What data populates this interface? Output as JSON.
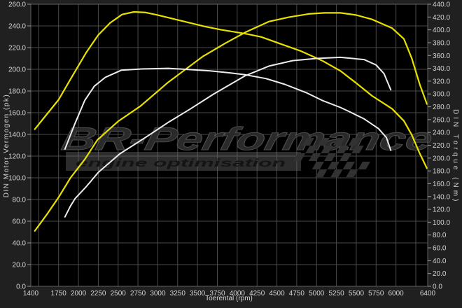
{
  "watermark": {
    "brand": "BR-Performance",
    "tagline": "engine optimisation"
  },
  "colors": {
    "margin_bg": "#202020",
    "plot_bg": "#000000",
    "grid": "#4a4a4a",
    "border": "#5f5f5f",
    "tick": "#9a9a9a",
    "tick_text": "#d6d6d6",
    "tuned": "#e8e100",
    "stock": "#ececec",
    "watermark_bar": "#6a6a6a",
    "checker": "#323232"
  },
  "chart_data": {
    "type": "line",
    "title": "",
    "xlabel": "Toerental (rpm)",
    "ylabel_left": "DIN Motor Vermogen (pk)",
    "ylabel_right": "DIN Torque (Nm)",
    "xlim": [
      1400,
      6400
    ],
    "ylim_left": [
      0,
      260
    ],
    "ylim_right": [
      0,
      440
    ],
    "grid": true,
    "x_grid_start": 1500,
    "x_grid_step": 250,
    "x_tick_labels": [
      1400,
      1750,
      2000,
      2250,
      2500,
      2750,
      3000,
      3250,
      3500,
      3750,
      4000,
      4250,
      4500,
      4750,
      5000,
      5250,
      5500,
      5750,
      6000,
      6400
    ],
    "y_left_tick_labels": [
      0,
      20,
      40,
      60,
      80,
      100,
      120,
      140,
      160,
      180,
      200,
      220,
      240,
      260
    ],
    "y_right_tick_labels": [
      0,
      20,
      40,
      60,
      80,
      100,
      120,
      140,
      160,
      180,
      200,
      220,
      240,
      260,
      280,
      300,
      320,
      340,
      360,
      380,
      400,
      420,
      440
    ],
    "tick_decimals": 1,
    "legend": "none",
    "series": [
      {
        "id": "tuned-torque",
        "axis": "right",
        "unit": "Nm",
        "color_key": "tuned",
        "width": 2.2,
        "points": [
          [
            1450,
            245
          ],
          [
            1600,
            268
          ],
          [
            1750,
            291
          ],
          [
            1900,
            323
          ],
          [
            2100,
            365
          ],
          [
            2250,
            392
          ],
          [
            2400,
            411
          ],
          [
            2550,
            424
          ],
          [
            2700,
            428
          ],
          [
            2850,
            427
          ],
          [
            3000,
            423
          ],
          [
            3200,
            417
          ],
          [
            3400,
            411
          ],
          [
            3600,
            405
          ],
          [
            3800,
            400
          ],
          [
            4100,
            394
          ],
          [
            4300,
            389
          ],
          [
            4550,
            378
          ],
          [
            4800,
            367
          ],
          [
            5070,
            352
          ],
          [
            5300,
            336
          ],
          [
            5500,
            317
          ],
          [
            5700,
            297
          ],
          [
            5950,
            277
          ],
          [
            6100,
            258
          ],
          [
            6200,
            236
          ],
          [
            6300,
            207
          ],
          [
            6390,
            184
          ]
        ]
      },
      {
        "id": "tuned-power",
        "axis": "left",
        "unit": "pk",
        "color_key": "tuned",
        "width": 2.2,
        "points": [
          [
            1450,
            51
          ],
          [
            1600,
            66
          ],
          [
            1750,
            82
          ],
          [
            1900,
            100
          ],
          [
            2080,
            117
          ],
          [
            2240,
            135
          ],
          [
            2500,
            152
          ],
          [
            2780,
            166
          ],
          [
            3130,
            188
          ],
          [
            3570,
            212
          ],
          [
            3850,
            224
          ],
          [
            4100,
            234
          ],
          [
            4400,
            244
          ],
          [
            4650,
            248
          ],
          [
            4900,
            251
          ],
          [
            5100,
            252
          ],
          [
            5300,
            252
          ],
          [
            5500,
            250
          ],
          [
            5700,
            246
          ],
          [
            5950,
            238
          ],
          [
            6100,
            228
          ],
          [
            6200,
            210
          ],
          [
            6300,
            186
          ],
          [
            6390,
            168
          ]
        ]
      },
      {
        "id": "stock-torque",
        "axis": "right",
        "unit": "Nm",
        "color_key": "stock",
        "width": 2,
        "points": [
          [
            1830,
            214
          ],
          [
            1950,
            252
          ],
          [
            2080,
            290
          ],
          [
            2200,
            312
          ],
          [
            2340,
            326
          ],
          [
            2540,
            337
          ],
          [
            2800,
            339
          ],
          [
            3130,
            340
          ],
          [
            3400,
            338
          ],
          [
            3660,
            336
          ],
          [
            3900,
            333
          ],
          [
            4100,
            330
          ],
          [
            4360,
            324
          ],
          [
            4600,
            315
          ],
          [
            4870,
            302
          ],
          [
            5070,
            290
          ],
          [
            5300,
            279
          ],
          [
            5420,
            272
          ],
          [
            5600,
            261
          ],
          [
            5780,
            246
          ],
          [
            5880,
            232
          ],
          [
            5935,
            212
          ]
        ]
      },
      {
        "id": "stock-power",
        "axis": "left",
        "unit": "pk",
        "color_key": "stock",
        "width": 2,
        "points": [
          [
            1830,
            64
          ],
          [
            1900,
            74
          ],
          [
            1960,
            81
          ],
          [
            2100,
            92
          ],
          [
            2250,
            105
          ],
          [
            2520,
            122
          ],
          [
            2840,
            137
          ],
          [
            3130,
            151
          ],
          [
            3400,
            163
          ],
          [
            3700,
            177
          ],
          [
            4100,
            194
          ],
          [
            4400,
            203
          ],
          [
            4700,
            208
          ],
          [
            5000,
            210
          ],
          [
            5300,
            211
          ],
          [
            5600,
            209
          ],
          [
            5750,
            204
          ],
          [
            5850,
            196
          ],
          [
            5935,
            181
          ]
        ]
      }
    ]
  }
}
